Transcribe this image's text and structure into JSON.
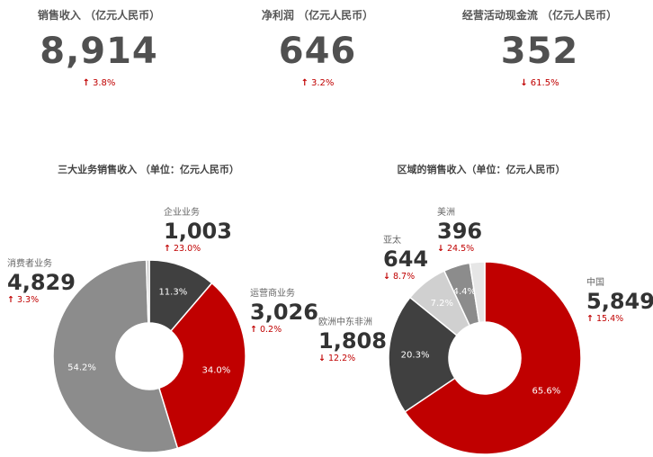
{
  "kpis": [
    {
      "title": "销售收入 （亿元人民币）",
      "value": "8,914",
      "direction": "up",
      "arrow": "↑",
      "change": "3.8%"
    },
    {
      "title": "净利润 （亿元人民币）",
      "value": "646",
      "direction": "up",
      "arrow": "↑",
      "change": "3.2%"
    },
    {
      "title": "经营活动现金流 （亿元人民币）",
      "value": "352",
      "direction": "down",
      "arrow": "↓",
      "change": "61.5%"
    }
  ],
  "chart_data": [
    {
      "type": "pie",
      "title": "三大业务销售收入 （单位：亿元人民币）",
      "categories": [
        "企业业务",
        "运营商业务",
        "消费者业务"
      ],
      "values": [
        1003,
        3026,
        4829
      ],
      "percent_labels": [
        "11.3%",
        "34.0%",
        "54.2%"
      ],
      "colors": [
        "#404040",
        "#c00000",
        "#8c8c8c"
      ],
      "value_labels": [
        "1,003",
        "3,026",
        "4,829"
      ],
      "changes": [
        {
          "arrow": "↑",
          "text": "23.0%",
          "direction": "up"
        },
        {
          "arrow": "↑",
          "text": "0.2%",
          "direction": "up"
        },
        {
          "arrow": "↑",
          "text": "3.3%",
          "direction": "up"
        }
      ],
      "other_gap_percent": 0.5
    },
    {
      "type": "pie",
      "title": "区域的销售收入（单位：亿元人民币）",
      "categories": [
        "中国",
        "欧洲中东非洲",
        "亚太",
        "美洲"
      ],
      "values": [
        5849,
        1808,
        644,
        396
      ],
      "percent_labels": [
        "65.6%",
        "20.3%",
        "7.2%",
        "4.4%"
      ],
      "colors": [
        "#c00000",
        "#404040",
        "#d0d0d0",
        "#8c8c8c"
      ],
      "value_labels": [
        "5,849",
        "1,808",
        "644",
        "396"
      ],
      "changes": [
        {
          "arrow": "↑",
          "text": "15.4%",
          "direction": "up"
        },
        {
          "arrow": "↓",
          "text": "12.2%",
          "direction": "down"
        },
        {
          "arrow": "↓",
          "text": "8.7%",
          "direction": "down"
        },
        {
          "arrow": "↓",
          "text": "24.5%",
          "direction": "down"
        }
      ],
      "other_gap_percent": 2.5
    }
  ]
}
